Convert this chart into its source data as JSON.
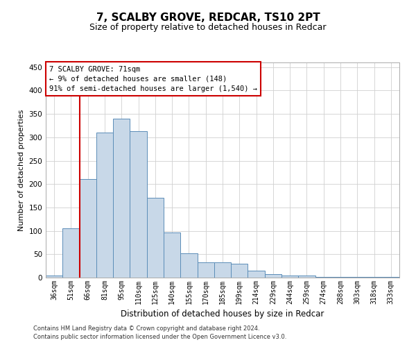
{
  "title1": "7, SCALBY GROVE, REDCAR, TS10 2PT",
  "title2": "Size of property relative to detached houses in Redcar",
  "xlabel": "Distribution of detached houses by size in Redcar",
  "ylabel": "Number of detached properties",
  "categories": [
    "36sqm",
    "51sqm",
    "66sqm",
    "81sqm",
    "95sqm",
    "110sqm",
    "125sqm",
    "140sqm",
    "155sqm",
    "170sqm",
    "185sqm",
    "199sqm",
    "214sqm",
    "229sqm",
    "244sqm",
    "259sqm",
    "274sqm",
    "288sqm",
    "303sqm",
    "318sqm",
    "333sqm"
  ],
  "values": [
    5,
    105,
    210,
    310,
    340,
    313,
    170,
    97,
    52,
    33,
    33,
    29,
    15,
    8,
    4,
    5,
    2,
    1,
    1,
    1,
    1
  ],
  "bar_color": "#c8d8e8",
  "bar_edge_color": "#5b8db8",
  "red_line_x": 1.5,
  "annotation_text": "7 SCALBY GROVE: 71sqm\n← 9% of detached houses are smaller (148)\n91% of semi-detached houses are larger (1,540) →",
  "annotation_box_color": "#ffffff",
  "annotation_box_edge": "#cc0000",
  "red_line_color": "#cc0000",
  "ylim": [
    0,
    460
  ],
  "yticks": [
    0,
    50,
    100,
    150,
    200,
    250,
    300,
    350,
    400,
    450
  ],
  "footer1": "Contains HM Land Registry data © Crown copyright and database right 2024.",
  "footer2": "Contains public sector information licensed under the Open Government Licence v3.0.",
  "background_color": "#ffffff",
  "grid_color": "#d0d0d0",
  "title1_fontsize": 11,
  "title2_fontsize": 9,
  "ylabel_fontsize": 8,
  "xlabel_fontsize": 8.5,
  "tick_fontsize": 7,
  "ann_fontsize": 7.5,
  "footer_fontsize": 6
}
